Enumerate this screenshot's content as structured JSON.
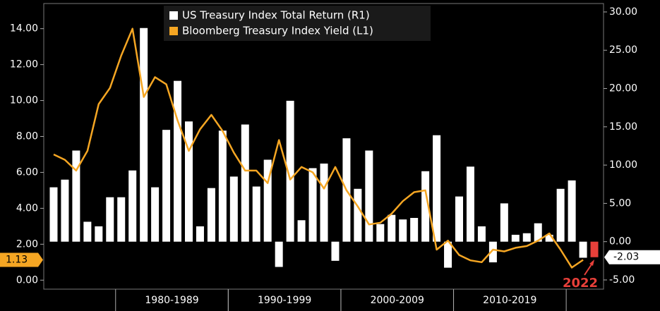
{
  "chart_data": {
    "type": "combo",
    "x": [
      1974,
      1975,
      1976,
      1977,
      1978,
      1979,
      1980,
      1981,
      1982,
      1983,
      1984,
      1985,
      1986,
      1987,
      1988,
      1989,
      1990,
      1991,
      1992,
      1993,
      1994,
      1995,
      1996,
      1997,
      1998,
      1999,
      2000,
      2001,
      2002,
      2003,
      2004,
      2005,
      2006,
      2007,
      2008,
      2009,
      2010,
      2011,
      2012,
      2013,
      2014,
      2015,
      2016,
      2017,
      2018,
      2019,
      2020,
      2021,
      2022
    ],
    "xlim": [
      1973.5,
      2022.5
    ],
    "x_groups": [
      {
        "label": "1980-1989",
        "range": [
          1980,
          1989
        ]
      },
      {
        "label": "1990-1999",
        "range": [
          1990,
          1999
        ]
      },
      {
        "label": "2000-2009",
        "range": [
          2000,
          2009
        ]
      },
      {
        "label": "2010-2019",
        "range": [
          2010,
          2019
        ]
      }
    ],
    "ylim": [
      -0.5,
      15.4
    ],
    "yticks": [
      {
        "value": 0,
        "label": "0.00"
      },
      {
        "value": 2,
        "label": "2.00"
      },
      {
        "value": 4,
        "label": "4.00"
      },
      {
        "value": 6,
        "label": "6.00"
      },
      {
        "value": 8,
        "label": "8.00"
      },
      {
        "value": 10,
        "label": "10.00"
      },
      {
        "value": 12,
        "label": "12.00"
      },
      {
        "value": 14,
        "label": "14.00"
      }
    ],
    "y2lim": [
      -6.2,
      31.1
    ],
    "y2ticks": [
      {
        "value": -5,
        "label": "-5.00"
      },
      {
        "value": 0,
        "label": "0.00"
      },
      {
        "value": 5,
        "label": "5.00"
      },
      {
        "value": 10,
        "label": "10.00"
      },
      {
        "value": 15,
        "label": "15.00"
      },
      {
        "value": 20,
        "label": "20.00"
      },
      {
        "value": 25,
        "label": "25.00"
      },
      {
        "value": 30,
        "label": "30.00"
      }
    ],
    "legend": "top",
    "series": [
      {
        "name": "US Treasury Index Total Return (R1)",
        "type": "bar",
        "axis": "y2",
        "color": "#ffffff",
        "values": [
          7.1,
          8.1,
          11.9,
          2.6,
          2.0,
          5.8,
          5.8,
          9.3,
          27.9,
          7.1,
          14.6,
          21.0,
          15.7,
          2.0,
          7.0,
          14.5,
          8.5,
          15.3,
          7.2,
          10.7,
          -3.3,
          18.4,
          2.8,
          9.6,
          10.2,
          -2.5,
          13.5,
          6.9,
          11.9,
          2.3,
          3.5,
          2.9,
          3.1,
          9.2,
          13.9,
          -3.4,
          5.9,
          9.8,
          2.0,
          -2.7,
          5.0,
          0.9,
          1.1,
          2.4,
          0.9,
          6.9,
          8.0,
          -2.1,
          -2.03
        ],
        "value_labels": [
          null,
          null,
          null,
          null,
          null,
          null,
          null,
          null,
          null,
          null,
          null,
          null,
          null,
          null,
          null,
          null,
          null,
          null,
          null,
          null,
          null,
          null,
          null,
          null,
          null,
          null,
          null,
          null,
          null,
          null,
          null,
          null,
          null,
          null,
          null,
          null,
          null,
          null,
          null,
          null,
          null,
          null,
          null,
          null,
          null,
          null,
          null,
          null,
          "-2.03"
        ]
      },
      {
        "name": "Bloomberg Treasury Index Yield (L1)",
        "type": "line",
        "axis": "y",
        "color": "#f5a623",
        "values": [
          7.0,
          6.7,
          6.1,
          7.2,
          9.8,
          10.7,
          12.5,
          14.0,
          10.2,
          11.3,
          10.9,
          8.9,
          7.2,
          8.4,
          9.2,
          8.3,
          7.1,
          6.1,
          6.1,
          5.4,
          7.8,
          5.6,
          6.3,
          6.0,
          5.1,
          6.3,
          5.0,
          4.1,
          3.1,
          3.2,
          3.7,
          4.4,
          4.9,
          5.0,
          1.7,
          2.2,
          1.4,
          1.1,
          1.0,
          1.7,
          1.6,
          1.8,
          1.9,
          2.2,
          2.6,
          1.7,
          0.7,
          1.13,
          null
        ],
        "value_labels": [
          null,
          null,
          null,
          null,
          null,
          null,
          null,
          null,
          null,
          null,
          null,
          null,
          null,
          null,
          null,
          null,
          null,
          null,
          null,
          null,
          null,
          null,
          null,
          null,
          null,
          null,
          null,
          null,
          null,
          null,
          null,
          null,
          null,
          null,
          null,
          null,
          null,
          null,
          null,
          null,
          null,
          null,
          null,
          null,
          null,
          null,
          null,
          "1.13",
          null
        ]
      }
    ],
    "annotation": {
      "text": "2022",
      "x": 2022,
      "color": "#e8403a"
    }
  }
}
